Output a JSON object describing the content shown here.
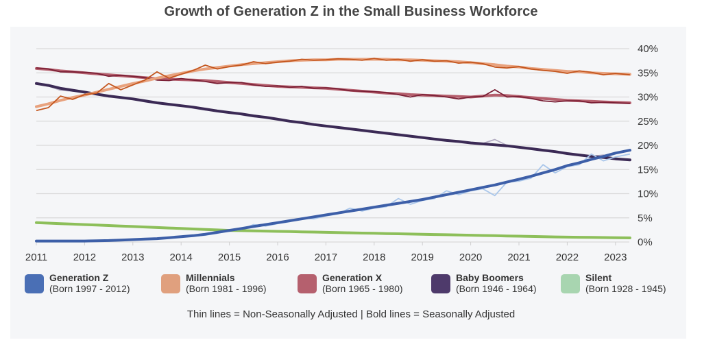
{
  "chart_data": {
    "type": "line",
    "title": "Growth of Generation Z in the Small Business Workforce",
    "xlabel": "",
    "ylabel": "",
    "xlim": [
      2011,
      2023.3
    ],
    "ylim": [
      0,
      40
    ],
    "x_ticks": [
      "2011",
      "2012",
      "2013",
      "2014",
      "2015",
      "2016",
      "2017",
      "2018",
      "2019",
      "2020",
      "2021",
      "2022",
      "2023"
    ],
    "y_ticks": [
      "0%",
      "5%",
      "10%",
      "15%",
      "20%",
      "25%",
      "30%",
      "35%",
      "40%"
    ],
    "y_tick_values": [
      0,
      5,
      10,
      15,
      20,
      25,
      30,
      35,
      40
    ],
    "grid": true,
    "legend_position": "bottom",
    "note": "Thin lines = Non-Seasonally Adjusted  |  Bold lines = Seasonally Adjusted",
    "x": [
      2011.0,
      2011.25,
      2011.5,
      2011.75,
      2012.0,
      2012.25,
      2012.5,
      2012.75,
      2013.0,
      2013.25,
      2013.5,
      2013.75,
      2014.0,
      2014.25,
      2014.5,
      2014.75,
      2015.0,
      2015.25,
      2015.5,
      2015.75,
      2016.0,
      2016.25,
      2016.5,
      2016.75,
      2017.0,
      2017.25,
      2017.5,
      2017.75,
      2018.0,
      2018.25,
      2018.5,
      2018.75,
      2019.0,
      2019.25,
      2019.5,
      2019.75,
      2020.0,
      2020.25,
      2020.5,
      2020.75,
      2021.0,
      2021.25,
      2021.5,
      2021.75,
      2022.0,
      2022.25,
      2022.5,
      2022.75,
      2023.0,
      2023.3
    ],
    "series": [
      {
        "name": "Silent",
        "subtitle": "(Born 1928 - 1945)",
        "legend_color": "#a8d5b0",
        "bold_color": "#8dbf5a",
        "thin_color": "#b9dc95",
        "sa": [
          4.0,
          3.9,
          3.8,
          3.7,
          3.6,
          3.5,
          3.4,
          3.3,
          3.2,
          3.1,
          3.0,
          2.9,
          2.8,
          2.7,
          2.6,
          2.5,
          2.4,
          2.35,
          2.3,
          2.25,
          2.2,
          2.15,
          2.1,
          2.05,
          2.0,
          1.95,
          1.9,
          1.85,
          1.8,
          1.75,
          1.7,
          1.65,
          1.6,
          1.55,
          1.5,
          1.45,
          1.4,
          1.35,
          1.3,
          1.25,
          1.2,
          1.15,
          1.1,
          1.05,
          1.0,
          0.98,
          0.95,
          0.92,
          0.9,
          0.85
        ],
        "nsa": [
          4.1,
          3.9,
          3.8,
          3.7,
          3.6,
          3.5,
          3.4,
          3.3,
          3.2,
          3.1,
          3.0,
          2.9,
          2.8,
          2.7,
          2.6,
          2.5,
          2.4,
          2.35,
          2.3,
          2.25,
          2.2,
          2.15,
          2.1,
          2.05,
          2.0,
          1.95,
          1.9,
          1.85,
          1.8,
          1.75,
          1.7,
          1.65,
          1.6,
          1.55,
          1.5,
          1.45,
          1.4,
          1.35,
          1.3,
          1.25,
          1.2,
          1.15,
          1.1,
          1.05,
          1.0,
          0.98,
          0.95,
          0.92,
          0.9,
          0.85
        ]
      },
      {
        "name": "Baby Boomers",
        "subtitle": "(Born 1946 - 1964)",
        "legend_color": "#4e3a6b",
        "bold_color": "#3b2a55",
        "thin_color": "#b3acc2",
        "sa": [
          32.8,
          32.4,
          31.8,
          31.4,
          31.0,
          30.6,
          30.2,
          29.9,
          29.6,
          29.2,
          28.8,
          28.5,
          28.2,
          27.9,
          27.5,
          27.1,
          26.8,
          26.5,
          26.1,
          25.8,
          25.4,
          25.0,
          24.7,
          24.3,
          24.0,
          23.7,
          23.4,
          23.1,
          22.8,
          22.5,
          22.2,
          21.9,
          21.6,
          21.3,
          21.0,
          20.8,
          20.5,
          20.3,
          20.1,
          19.9,
          19.6,
          19.3,
          19.0,
          18.7,
          18.3,
          18.0,
          17.7,
          17.5,
          17.2,
          17.0
        ],
        "nsa": [
          33.0,
          32.3,
          31.4,
          31.2,
          31.1,
          30.5,
          30.0,
          30.0,
          29.5,
          29.0,
          28.7,
          28.6,
          28.2,
          27.7,
          27.3,
          27.2,
          26.8,
          26.3,
          25.9,
          25.8,
          25.5,
          25.0,
          24.6,
          24.3,
          24.0,
          23.7,
          23.3,
          23.1,
          22.8,
          22.4,
          22.1,
          21.9,
          21.6,
          21.2,
          21.0,
          20.8,
          20.5,
          20.4,
          21.2,
          20.0,
          19.6,
          19.3,
          19.0,
          18.6,
          18.3,
          18.0,
          17.7,
          18.0,
          17.3,
          17.1
        ]
      },
      {
        "name": "Generation X",
        "subtitle": "(Born 1965 - 1980)",
        "legend_color": "#b5606e",
        "bold_color": "#b55f6d",
        "thin_color": "#7a1f35",
        "sa": [
          35.9,
          35.7,
          35.4,
          35.2,
          35.0,
          34.8,
          34.6,
          34.4,
          34.2,
          34.0,
          33.8,
          33.7,
          33.6,
          33.5,
          33.4,
          33.2,
          33.0,
          32.8,
          32.6,
          32.4,
          32.2,
          32.1,
          32.0,
          31.9,
          31.8,
          31.6,
          31.4,
          31.2,
          31.0,
          30.8,
          30.7,
          30.5,
          30.4,
          30.3,
          30.2,
          30.1,
          30.0,
          30.2,
          30.4,
          30.3,
          30.1,
          29.9,
          29.7,
          29.5,
          29.3,
          29.2,
          29.1,
          29.0,
          28.9,
          28.8
        ],
        "nsa": [
          36.0,
          35.8,
          35.2,
          35.2,
          35.1,
          34.9,
          34.3,
          34.5,
          34.3,
          34.0,
          33.5,
          33.4,
          33.8,
          33.5,
          33.2,
          32.8,
          33.0,
          33.0,
          32.5,
          32.2,
          32.3,
          32.0,
          32.2,
          31.8,
          31.9,
          31.7,
          31.3,
          31.2,
          31.1,
          30.9,
          30.5,
          30.0,
          30.5,
          30.3,
          30.0,
          29.6,
          30.0,
          30.1,
          31.5,
          30.0,
          30.1,
          29.7,
          29.2,
          29.0,
          29.2,
          29.2,
          28.8,
          28.9,
          28.8,
          28.7
        ]
      },
      {
        "name": "Millennials",
        "subtitle": "(Born 1981 - 1996)",
        "legend_color": "#e0a07e",
        "bold_color": "#e8a27e",
        "thin_color": "#c4561e",
        "sa": [
          28.0,
          28.6,
          29.3,
          29.9,
          30.4,
          31.0,
          31.6,
          32.2,
          32.8,
          33.3,
          33.9,
          34.4,
          34.9,
          35.4,
          35.8,
          36.1,
          36.4,
          36.7,
          36.9,
          37.1,
          37.3,
          37.5,
          37.6,
          37.7,
          37.7,
          37.8,
          37.8,
          37.8,
          37.8,
          37.8,
          37.7,
          37.7,
          37.6,
          37.5,
          37.4,
          37.3,
          37.1,
          36.9,
          36.7,
          36.4,
          36.2,
          35.9,
          35.7,
          35.5,
          35.3,
          35.2,
          35.0,
          34.9,
          34.8,
          34.7
        ],
        "nsa": [
          27.2,
          27.8,
          30.2,
          29.5,
          30.5,
          30.8,
          32.8,
          31.5,
          32.5,
          33.5,
          35.2,
          33.9,
          34.7,
          35.5,
          36.6,
          35.8,
          36.3,
          36.6,
          37.3,
          36.9,
          37.2,
          37.4,
          37.8,
          37.6,
          37.7,
          37.9,
          37.8,
          37.6,
          38.0,
          37.6,
          37.8,
          37.4,
          37.7,
          37.4,
          37.5,
          37.0,
          37.2,
          36.9,
          36.2,
          36.0,
          36.3,
          35.8,
          35.5,
          35.3,
          34.9,
          35.4,
          35.1,
          34.6,
          34.9,
          34.6
        ]
      },
      {
        "name": "Generation Z",
        "subtitle": "(Born 1997 - 2012)",
        "legend_color": "#4a6fb5",
        "bold_color": "#3d5fa8",
        "thin_color": "#a9c6ea",
        "sa": [
          0.2,
          0.2,
          0.2,
          0.2,
          0.2,
          0.25,
          0.3,
          0.4,
          0.5,
          0.6,
          0.7,
          0.9,
          1.1,
          1.3,
          1.6,
          2.0,
          2.4,
          2.8,
          3.2,
          3.6,
          4.0,
          4.4,
          4.8,
          5.2,
          5.6,
          6.0,
          6.4,
          6.8,
          7.2,
          7.6,
          8.0,
          8.4,
          8.8,
          9.3,
          9.8,
          10.3,
          10.8,
          11.3,
          11.8,
          12.4,
          13.0,
          13.6,
          14.3,
          15.0,
          15.8,
          16.4,
          17.1,
          17.7,
          18.4,
          19.0
        ],
        "nsa": [
          0.2,
          0.2,
          0.2,
          0.2,
          0.2,
          0.2,
          0.3,
          0.4,
          0.4,
          0.5,
          0.6,
          0.8,
          1.0,
          1.2,
          1.4,
          1.8,
          2.3,
          2.6,
          3.6,
          3.3,
          3.8,
          4.2,
          5.0,
          4.8,
          5.4,
          5.8,
          7.0,
          6.4,
          7.0,
          7.3,
          9.0,
          7.8,
          8.6,
          9.0,
          10.6,
          9.8,
          10.6,
          11.0,
          9.6,
          12.4,
          12.6,
          13.2,
          16.0,
          14.3,
          15.6,
          16.0,
          18.2,
          16.8,
          17.6,
          18.2
        ]
      }
    ]
  },
  "legend_order": [
    4,
    3,
    2,
    1,
    0
  ]
}
